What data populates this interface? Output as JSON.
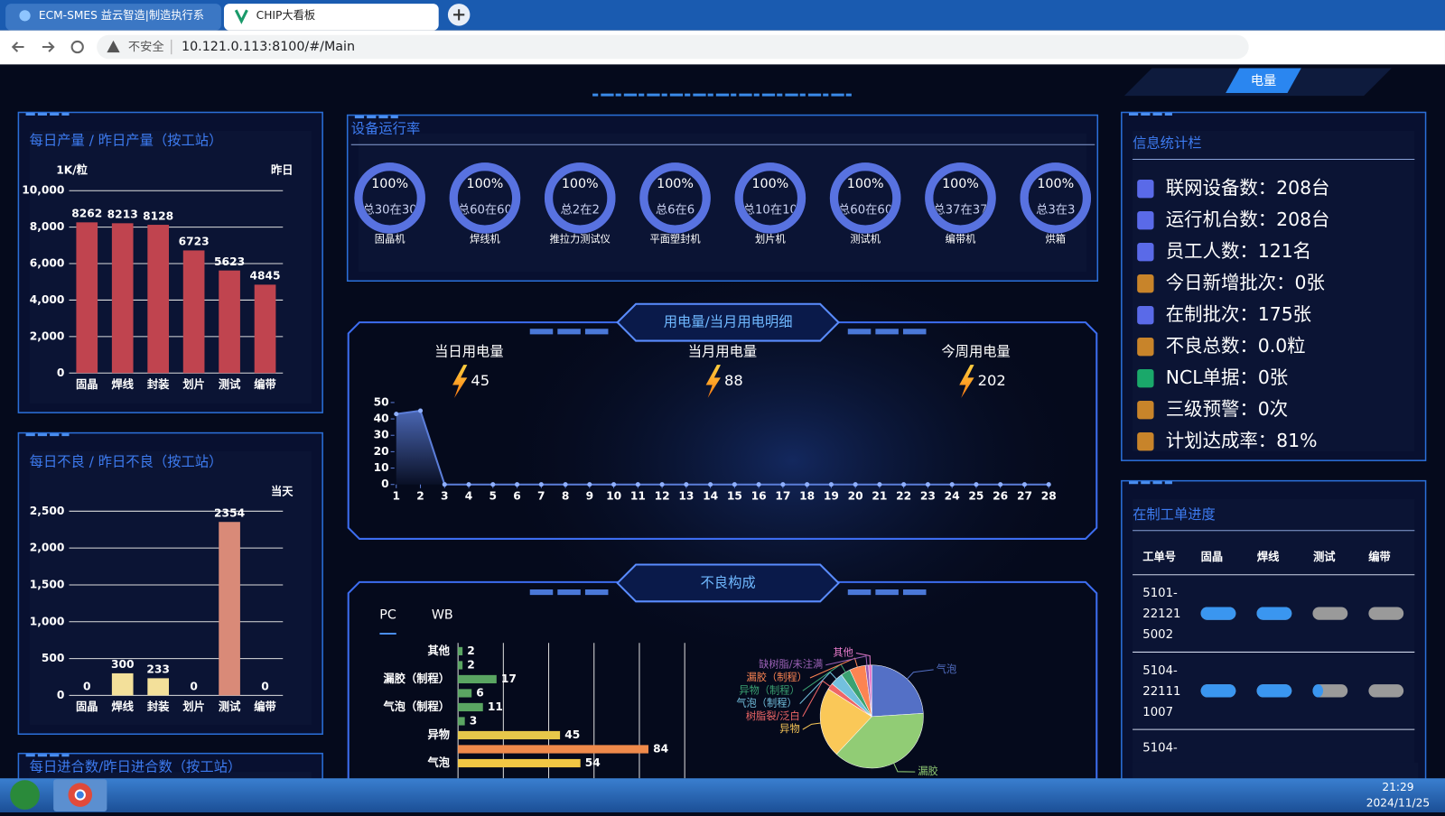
{
  "browser": {
    "tabs": [
      "ECM-SMES 益云智造|制造执行系",
      "CHIP大看板"
    ],
    "security": "不安全",
    "url": "10.121.0.113:8100/#/Main"
  },
  "header": {
    "button": "电量"
  },
  "output_chart": {
    "type": "bar",
    "title": "每日产量 / 昨日产量（按工站）",
    "y_unit": "1K/粒",
    "legend": "昨日",
    "categories": [
      "固晶",
      "焊线",
      "封装",
      "划片",
      "测试",
      "编带"
    ],
    "values": [
      8262,
      8213,
      8128,
      6723,
      5623,
      4845
    ],
    "color": "#c0444f",
    "ylim": [
      0,
      10000
    ],
    "yticks": [
      0,
      {
        "value": 2000,
        "label": "2,000"
      },
      {
        "value": 4000,
        "label": "4,000"
      },
      {
        "value": 6000,
        "label": "6,000"
      },
      {
        "value": 8000,
        "label": "8,000"
      },
      {
        "value": 10000,
        "label": "10,000"
      }
    ],
    "grid": true
  },
  "defect_chart": {
    "type": "bar",
    "title": "每日不良 / 昨日不良（按工站）",
    "legend": "当天",
    "categories": [
      "固晶",
      "焊线",
      "封装",
      "划片",
      "测试",
      "编带"
    ],
    "values": [
      0,
      300,
      233,
      0,
      2354,
      0
    ],
    "colors": [
      "#f3e09a",
      "#f3e09a",
      "#f3e09a",
      "#f3e09a",
      "#d98a78",
      "#f3e09a"
    ],
    "ylim": [
      0,
      2500
    ],
    "yticks": [
      0,
      500,
      {
        "value": 1000,
        "label": "1,000"
      },
      {
        "value": 1500,
        "label": "1,500"
      },
      {
        "value": 2000,
        "label": "2,000"
      },
      {
        "value": 2500,
        "label": "2,500"
      }
    ],
    "grid": true
  },
  "inbound": {
    "title": "每日进合数/昨日进合数（按工站）"
  },
  "equipment": {
    "title": "设备运行率",
    "names": [
      "固晶机",
      "焊线机",
      "推拉力测试仪",
      "平面塑封机",
      "划片机",
      "测试机",
      "编带机",
      "烘箱"
    ],
    "rates": [
      100,
      100,
      100,
      100,
      100,
      100,
      100,
      100
    ],
    "rate_labels": [
      "100%",
      "100%",
      "100%",
      "100%",
      "100%",
      "100%",
      "100%",
      "100%"
    ],
    "details": [
      "总30在30",
      "总60在60",
      "总2在2",
      "总6在6",
      "总10在10",
      "总60在60",
      "总37在37",
      "总3在3"
    ]
  },
  "power": {
    "title": "用电量/当月用电明细",
    "stats": [
      {
        "label": "当日用电量",
        "value": 45
      },
      {
        "label": "当月用电量",
        "value": 88
      },
      {
        "label": "今周用电量",
        "value": 202
      }
    ],
    "chart": {
      "type": "line",
      "x": [
        1,
        2,
        3,
        4,
        5,
        6,
        7,
        8,
        9,
        10,
        11,
        12,
        13,
        14,
        15,
        16,
        17,
        18,
        19,
        20,
        21,
        22,
        23,
        24,
        25,
        26,
        27,
        28
      ],
      "values": [
        43,
        45,
        0,
        0,
        0,
        0,
        0,
        0,
        0,
        0,
        0,
        0,
        0,
        0,
        0,
        0,
        0,
        0,
        0,
        0,
        0,
        0,
        0,
        0,
        0,
        0,
        0,
        0
      ],
      "color": "#5b7dd8",
      "xlim": [
        1,
        28
      ],
      "xticks": [
        1,
        2,
        3,
        4,
        5,
        6,
        7,
        8,
        9,
        10,
        11,
        12,
        13,
        14,
        15,
        16,
        17,
        18,
        19,
        20,
        21,
        22,
        23,
        24,
        25,
        26,
        27,
        28
      ],
      "ylim": [
        0,
        50
      ],
      "yticks": [
        0,
        10,
        20,
        30,
        40,
        50
      ]
    }
  },
  "defects": {
    "title": "不良构成",
    "tabs": [
      "PC",
      "WB"
    ],
    "bars": {
      "type": "bar",
      "categories": [
        "其他",
        null,
        "漏胶（制程）",
        null,
        "气泡（制程）",
        null,
        "异物",
        null,
        "气泡"
      ],
      "values": [
        2,
        2,
        17,
        6,
        11,
        3,
        45,
        84,
        54
      ],
      "colors": [
        "#5aa562",
        "#5aa562",
        "#5aa562",
        "#5aa562",
        "#5aa562",
        "#5aa562",
        "#e6c84a",
        "#f08a4b",
        "#f2c744"
      ],
      "xlim": [
        0,
        100
      ],
      "xticks": [
        0,
        20,
        40,
        60,
        80,
        100
      ],
      "grid": true
    },
    "pie": {
      "type": "pie",
      "labels": [
        "气泡",
        "漏胶",
        "异物",
        "树脂裂/泛白",
        "气泡（制程）",
        "异物（制程）",
        "漏胶（制程）",
        "缺树脂/未注满",
        "其他"
      ],
      "values": [
        24,
        38,
        22,
        2,
        4,
        3,
        5,
        1,
        1
      ],
      "colors": [
        "#5470c6",
        "#91cc75",
        "#fac858",
        "#ee6666",
        "#73c0de",
        "#3ba272",
        "#fc8452",
        "#9a60b4",
        "#ea7ccc"
      ]
    }
  },
  "info": {
    "title": "信息统计栏",
    "items": [
      "联网设备数：208台",
      "运行机台数：208台",
      "员工人数：121名",
      "今日新增批次：0张",
      "在制批次：175张",
      "不良总数：0.0粒",
      "NCL单据：0张",
      "三级预警：0次",
      "计划达成率：81%"
    ]
  },
  "orders": {
    "title": "在制工单进度",
    "headers": [
      "工单号",
      "固晶",
      "焊线",
      "测试",
      "编带"
    ],
    "rows": [
      {
        "id_lines": [
          "5101-",
          "22121",
          "5002"
        ],
        "progress": [
          100,
          100,
          0,
          0
        ]
      },
      {
        "id_lines": [
          "5104-",
          "22111",
          "1007"
        ],
        "progress": [
          100,
          100,
          30,
          0
        ]
      },
      {
        "id_lines": [
          "5104-"
        ]
      }
    ]
  },
  "taskbar": {
    "time": "21:29",
    "date": "2024/11/25"
  }
}
